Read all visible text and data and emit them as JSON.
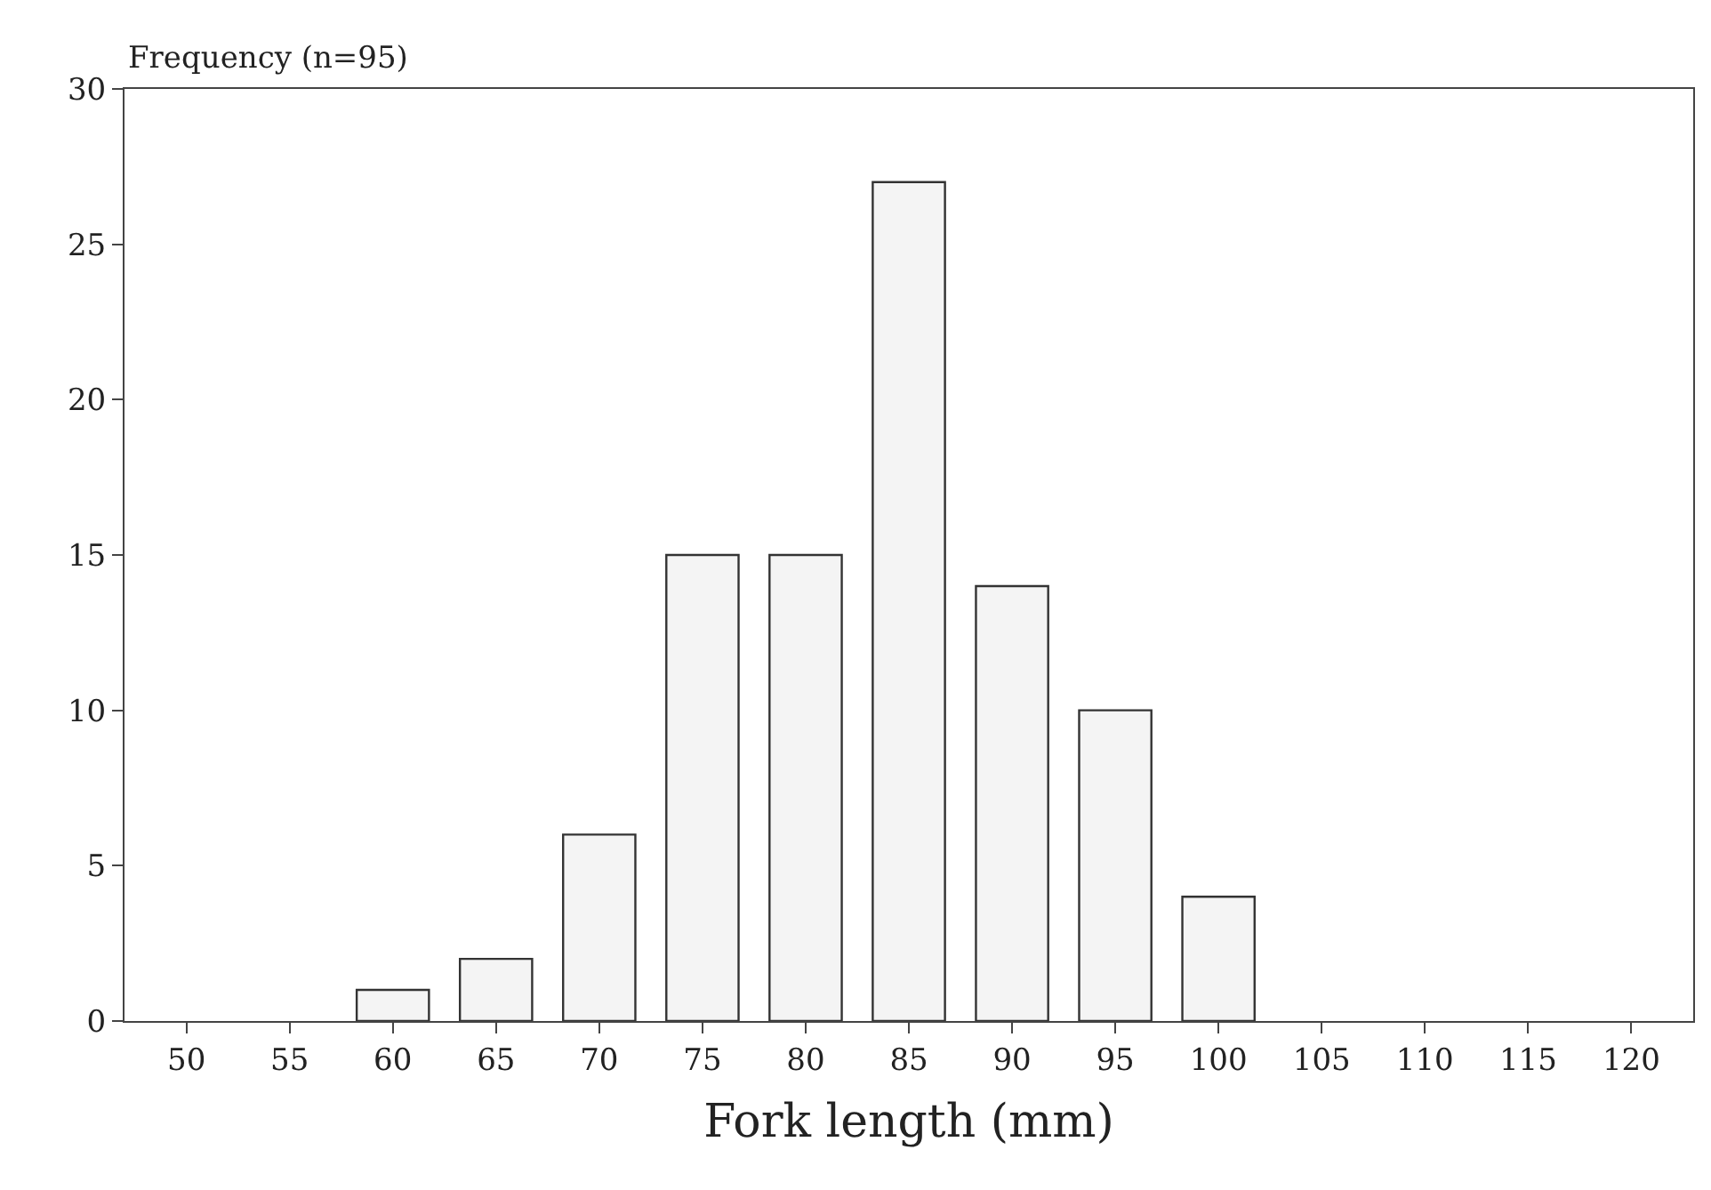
{
  "chart_data": {
    "type": "bar",
    "ylabel": "Frequency (n=95)",
    "xlabel": "Fork length (mm)",
    "categories": [
      "50",
      "55",
      "60",
      "65",
      "70",
      "75",
      "80",
      "85",
      "90",
      "95",
      "100",
      "105",
      "110",
      "115",
      "120"
    ],
    "values": [
      0,
      0,
      1,
      2,
      6,
      15,
      15,
      27,
      14,
      10,
      4,
      0,
      0,
      0,
      0
    ],
    "color": "#f4f4f4",
    "ylim": [
      0,
      30
    ],
    "yticks": [
      0,
      5,
      10,
      15,
      20,
      25,
      30
    ]
  }
}
